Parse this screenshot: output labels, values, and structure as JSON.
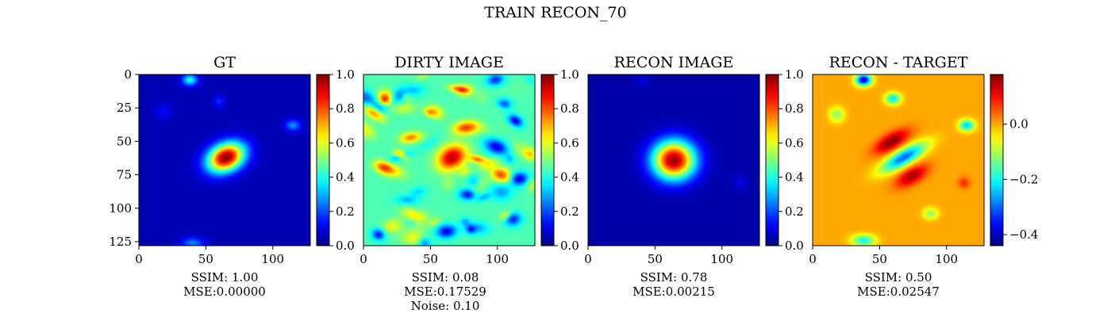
{
  "figure": {
    "suptitle": "TRAIN RECON_70"
  },
  "chart_data": [
    {
      "type": "heatmap",
      "title": "GT",
      "colormap": "jet",
      "xticks": [
        0,
        50,
        100
      ],
      "yticks": [
        0,
        25,
        50,
        75,
        100,
        125
      ],
      "xlim": [
        0,
        128
      ],
      "ylim": [
        128,
        0
      ],
      "colorbar": {
        "ticks": [
          0.0,
          0.2,
          0.4,
          0.6,
          0.8,
          1.0
        ],
        "tick_labels": [
          "0.0",
          "0.2",
          "0.4",
          "0.6",
          "0.8",
          "1.0"
        ],
        "range": [
          0,
          1
        ]
      },
      "caption": [
        "SSIM: 1.00",
        "MSE:0.00000"
      ],
      "metrics": {
        "SSIM": 1.0,
        "MSE": 0.0
      },
      "background_level": 0.05,
      "features": [
        {
          "x": 65,
          "y": 62,
          "amp": 0.95,
          "sx": 10,
          "sy": 7,
          "rot": -25
        },
        {
          "x": 38,
          "y": 4,
          "amp": 0.35,
          "sx": 4,
          "sy": 3,
          "rot": 0
        },
        {
          "x": 60,
          "y": 20,
          "amp": 0.12,
          "sx": 3,
          "sy": 3,
          "rot": 0
        },
        {
          "x": 115,
          "y": 38,
          "amp": 0.22,
          "sx": 4,
          "sy": 3,
          "rot": 0
        },
        {
          "x": 18,
          "y": 28,
          "amp": 0.08,
          "sx": 4,
          "sy": 4,
          "rot": 0
        },
        {
          "x": 40,
          "y": 126,
          "amp": 0.2,
          "sx": 6,
          "sy": 3,
          "rot": 0
        }
      ]
    },
    {
      "type": "heatmap",
      "title": "DIRTY IMAGE",
      "colormap": "jet",
      "xticks": [
        0,
        50,
        100
      ],
      "xlim": [
        0,
        128
      ],
      "ylim": [
        128,
        0
      ],
      "colorbar": {
        "ticks": [
          0.0,
          0.2,
          0.4,
          0.6,
          0.8,
          1.0
        ],
        "tick_labels": [
          "0.0",
          "0.2",
          "0.4",
          "0.6",
          "0.8",
          "1.0"
        ],
        "range": [
          0,
          1
        ]
      },
      "caption": [
        "SSIM: 0.08",
        "MSE:0.17529",
        "Noise: 0.10"
      ],
      "metrics": {
        "SSIM": 0.08,
        "MSE": 0.17529,
        "Noise": 0.1
      },
      "background_level": 0.45,
      "noise_amplitude": 0.38,
      "features": [
        {
          "x": 66,
          "y": 62,
          "amp": 0.5,
          "sx": 8,
          "sy": 6,
          "rot": -30
        }
      ]
    },
    {
      "type": "heatmap",
      "title": "RECON IMAGE",
      "colormap": "jet",
      "xticks": [
        0,
        50,
        100
      ],
      "xlim": [
        0,
        128
      ],
      "ylim": [
        128,
        0
      ],
      "colorbar": {
        "ticks": [
          0.0,
          0.2,
          0.4,
          0.6,
          0.8,
          1.0
        ],
        "tick_labels": [
          "0.0",
          "0.2",
          "0.4",
          "0.6",
          "0.8",
          "1.0"
        ],
        "range": [
          0,
          1
        ]
      },
      "caption": [
        "SSIM: 0.78",
        "MSE:0.00215"
      ],
      "metrics": {
        "SSIM": 0.78,
        "MSE": 0.00215
      },
      "background_level": 0.04,
      "features": [
        {
          "x": 64,
          "y": 64,
          "amp": 0.94,
          "sx": 11,
          "sy": 10,
          "rot": 0
        },
        {
          "x": 113,
          "y": 81,
          "amp": 0.06,
          "sx": 4,
          "sy": 4,
          "rot": 0
        },
        {
          "x": 40,
          "y": 4,
          "amp": 0.05,
          "sx": 4,
          "sy": 3,
          "rot": 0
        }
      ]
    },
    {
      "type": "heatmap",
      "title": "RECON - TARGET",
      "colormap": "jet",
      "xticks": [
        0,
        50,
        100
      ],
      "xlim": [
        0,
        128
      ],
      "ylim": [
        128,
        0
      ],
      "colorbar": {
        "ticks": [
          0.0,
          -0.2,
          -0.4
        ],
        "tick_labels": [
          "0.0",
          "−0.2",
          "−0.4"
        ],
        "range": [
          -0.44,
          0.18
        ]
      },
      "caption": [
        "SSIM: 0.50",
        "MSE:0.02547"
      ],
      "metrics": {
        "SSIM": 0.5,
        "MSE": 0.02547
      },
      "background_level": 0.0,
      "features": [
        {
          "x": 38,
          "y": 4,
          "amp": -0.4,
          "sx": 4,
          "sy": 3,
          "rot": 0
        },
        {
          "x": 60,
          "y": 18,
          "amp": -0.22,
          "sx": 4,
          "sy": 3,
          "rot": 0
        },
        {
          "x": 18,
          "y": 30,
          "amp": -0.12,
          "sx": 4,
          "sy": 4,
          "rot": 0
        },
        {
          "x": 115,
          "y": 38,
          "amp": -0.24,
          "sx": 4,
          "sy": 3,
          "rot": 0
        },
        {
          "x": 59,
          "y": 50,
          "amp": 0.18,
          "sx": 10,
          "sy": 4,
          "rot": -30
        },
        {
          "x": 68,
          "y": 62,
          "amp": -0.3,
          "sx": 13,
          "sy": 4,
          "rot": -30
        },
        {
          "x": 74,
          "y": 76,
          "amp": 0.16,
          "sx": 9,
          "sy": 4,
          "rot": -30
        },
        {
          "x": 113,
          "y": 81,
          "amp": 0.08,
          "sx": 3,
          "sy": 3,
          "rot": 0
        },
        {
          "x": 88,
          "y": 104,
          "amp": -0.12,
          "sx": 4,
          "sy": 3,
          "rot": 0
        },
        {
          "x": 38,
          "y": 124,
          "amp": -0.2,
          "sx": 6,
          "sy": 3,
          "rot": 0
        }
      ]
    }
  ]
}
